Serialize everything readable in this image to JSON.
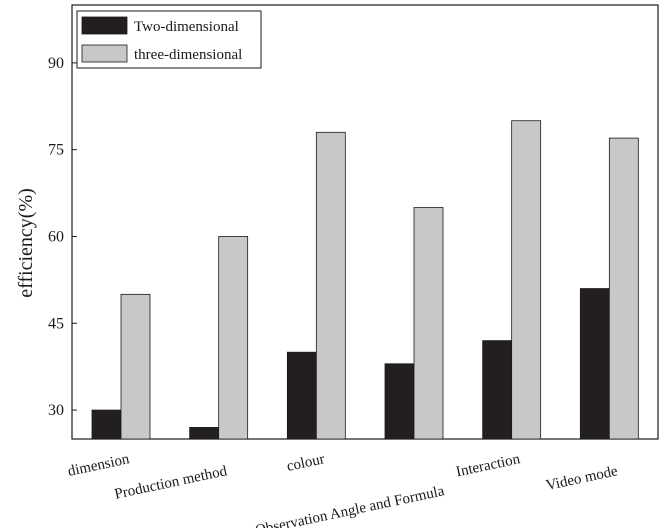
{
  "chart_data": {
    "type": "bar",
    "title": "",
    "xlabel": "",
    "ylabel": "efficiency(%)",
    "categories": [
      "dimension",
      "Production method",
      "colour",
      "Observation Angle and Formula",
      "Interaction",
      "Video mode"
    ],
    "series": [
      {
        "name": "Two-dimensional",
        "values": [
          30,
          27,
          40,
          38,
          42,
          51
        ],
        "color": "#231f20"
      },
      {
        "name": "three-dimensional",
        "values": [
          50,
          60,
          78,
          65,
          80,
          77
        ],
        "color": "#c8c8c8"
      }
    ],
    "ylim": [
      25,
      100
    ],
    "yticks": [
      30,
      45,
      60,
      75,
      90
    ],
    "grid": false,
    "legend_position": "top-left"
  }
}
